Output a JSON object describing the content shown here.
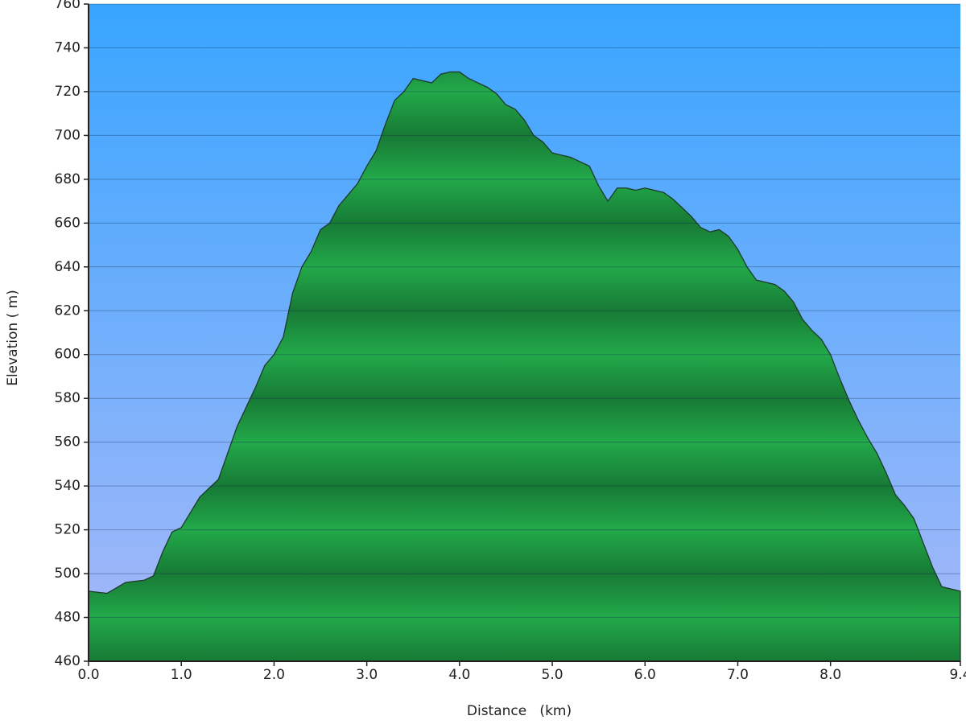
{
  "chart_data": {
    "type": "area",
    "xlabel": "Distance   (km)",
    "ylabel": "Elevation ( m)",
    "x": [
      0,
      0.2,
      0.4,
      0.6,
      0.7,
      0.8,
      0.9,
      1.0,
      1.1,
      1.2,
      1.4,
      1.5,
      1.6,
      1.8,
      1.9,
      2.0,
      2.1,
      2.2,
      2.3,
      2.4,
      2.5,
      2.6,
      2.7,
      2.8,
      2.9,
      3.0,
      3.1,
      3.2,
      3.3,
      3.4,
      3.5,
      3.6,
      3.7,
      3.8,
      3.9,
      4.0,
      4.1,
      4.2,
      4.3,
      4.4,
      4.5,
      4.6,
      4.7,
      4.8,
      4.9,
      5.0,
      5.1,
      5.2,
      5.3,
      5.4,
      5.5,
      5.6,
      5.7,
      5.8,
      5.9,
      6.0,
      6.1,
      6.2,
      6.3,
      6.4,
      6.5,
      6.6,
      6.7,
      6.8,
      6.9,
      7.0,
      7.1,
      7.2,
      7.3,
      7.4,
      7.5,
      7.6,
      7.7,
      7.8,
      7.9,
      8.0,
      8.1,
      8.2,
      8.3,
      8.4,
      8.5,
      8.6,
      8.7,
      8.8,
      8.9,
      9.0,
      9.1,
      9.2,
      9.3,
      9.4
    ],
    "values": [
      492,
      491,
      496,
      497,
      499,
      510,
      519,
      521,
      528,
      535,
      543,
      555,
      567,
      585,
      595,
      600,
      608,
      628,
      640,
      647,
      657,
      660,
      668,
      673,
      678,
      686,
      693,
      705,
      716,
      720,
      726,
      725,
      724,
      728,
      729,
      729,
      726,
      724,
      722,
      719,
      714,
      712,
      707,
      700,
      697,
      692,
      691,
      690,
      688,
      686,
      677,
      670,
      676,
      676,
      675,
      676,
      675,
      674,
      671,
      667,
      663,
      658,
      656,
      657,
      654,
      648,
      640,
      634,
      633,
      632,
      629,
      624,
      616,
      611,
      607,
      600,
      589,
      579,
      570,
      562,
      555,
      546,
      536,
      531,
      525,
      514,
      503,
      494,
      493,
      492
    ],
    "color": "#22a94a",
    "xlim": [
      0,
      9.4
    ],
    "xticks": [
      {
        "value": 0,
        "label": "0.0"
      },
      {
        "value": 1,
        "label": "1.0"
      },
      {
        "value": 2,
        "label": "2.0"
      },
      {
        "value": 3,
        "label": "3.0"
      },
      {
        "value": 4,
        "label": "4.0"
      },
      {
        "value": 5,
        "label": "5.0"
      },
      {
        "value": 6,
        "label": "6.0"
      },
      {
        "value": 7,
        "label": "7.0"
      },
      {
        "value": 8,
        "label": "8.0"
      },
      9.4
    ],
    "ylim": [
      460,
      760
    ],
    "yticks": [
      460,
      480,
      500,
      520,
      540,
      560,
      580,
      600,
      620,
      640,
      660,
      680,
      700,
      720,
      740,
      760
    ],
    "grid": true
  }
}
